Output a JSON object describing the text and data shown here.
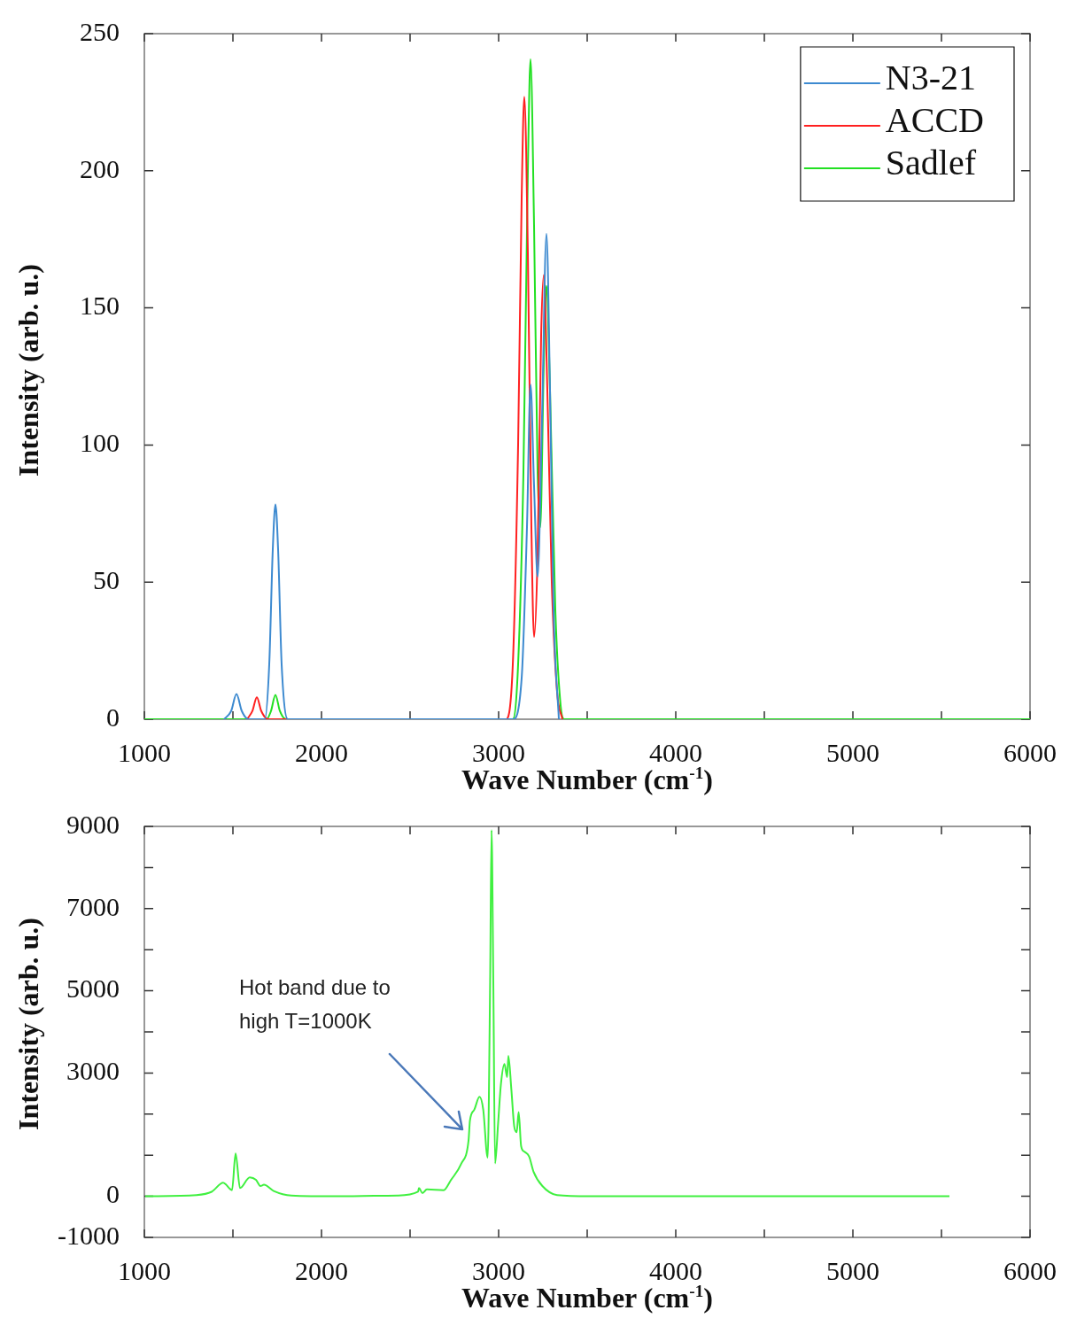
{
  "chart_data": [
    {
      "type": "line",
      "xlabel": "Wave Number (cm$^{-1}$)",
      "ylabel": "Intensity (arb. u.)",
      "xlim": [
        1000,
        6000
      ],
      "ylim": [
        0,
        250
      ],
      "xticks": [
        1000,
        {
          "value": 1500,
          "label": null
        },
        2000,
        {
          "value": 2500,
          "label": null
        },
        3000,
        {
          "value": 3500,
          "label": null
        },
        4000,
        {
          "value": 4500,
          "label": null
        },
        5000,
        {
          "value": 5500,
          "label": null
        },
        6000
      ],
      "yticks": [
        0,
        50,
        100,
        150,
        200,
        250
      ],
      "legend": "top right",
      "marker": "none",
      "series": [
        {
          "name": "N3-21",
          "color": "#3d8ad0",
          "x": [
            1450,
            1490,
            1520,
            1550,
            1590,
            1680,
            1705,
            1725,
            1740,
            1755,
            1775,
            1810,
            3080,
            3130,
            3160,
            3180,
            3200,
            3220,
            3245,
            3270,
            3290,
            3310,
            3340
          ],
          "values": [
            0,
            3,
            9.2,
            3,
            0,
            0,
            20,
            62,
            78.3,
            62,
            20,
            0,
            0,
            15,
            70,
            122,
            85,
            52,
            110,
            177,
            120,
            40,
            0
          ]
        },
        {
          "name": "ACCD",
          "color": "#ff2020",
          "x": [
            1580,
            1610,
            1635,
            1660,
            1700,
            3040,
            3080,
            3110,
            3130,
            3145,
            3165,
            3185,
            3200,
            3220,
            3240,
            3255,
            3275,
            3300,
            3330,
            3360
          ],
          "values": [
            0,
            3,
            8,
            3,
            0,
            0,
            20,
            100,
            190,
            227,
            170,
            70,
            30,
            60,
            140,
            162,
            120,
            50,
            10,
            0
          ]
        },
        {
          "name": "Sadlef",
          "color": "#22e022",
          "x": [
            1000,
            1690,
            1715,
            1740,
            1765,
            1800,
            3080,
            3110,
            3140,
            3165,
            3180,
            3200,
            3220,
            3235,
            3255,
            3270,
            3290,
            3320,
            3350,
            3370,
            6000
          ],
          "values": [
            0,
            0,
            3,
            8.9,
            3,
            0,
            0,
            20,
            90,
            200,
            240.7,
            180,
            90,
            70,
            130,
            158,
            120,
            40,
            5,
            0,
            0
          ]
        }
      ]
    },
    {
      "type": "line",
      "xlabel": "Wave Number (cm$^{-1}$)",
      "ylabel": "Intensity (arb. u.)",
      "xlim": [
        1000,
        6000
      ],
      "ylim": [
        -1000,
        9000
      ],
      "xticks": [
        1000,
        {
          "value": 1500,
          "label": null
        },
        2000,
        {
          "value": 2500,
          "label": null
        },
        3000,
        {
          "value": 3500,
          "label": null
        },
        4000,
        {
          "value": 4500,
          "label": null
        },
        5000,
        {
          "value": 5500,
          "label": null
        },
        6000
      ],
      "yticks": [
        -1000,
        0,
        {
          "value": 1000,
          "label": null
        },
        {
          "value": 2000,
          "label": null
        },
        3000,
        {
          "value": 4000,
          "label": null
        },
        5000,
        {
          "value": 6000,
          "label": null
        },
        7000,
        {
          "value": 8000,
          "label": null
        },
        9000
      ],
      "marker": "none",
      "annotations": [
        "Hot band due to high T=1000K"
      ],
      "series": [
        {
          "color": "#40f040",
          "x": [
            1005,
            1295,
            1380,
            1445,
            1495,
            1515,
            1540,
            1595,
            1630,
            1655,
            1675,
            1730,
            1830,
            2095,
            2430,
            2545,
            2550,
            2570,
            2595,
            2690,
            2730,
            2790,
            2830,
            2838,
            2863,
            2892,
            2913,
            2938,
            2952,
            2960,
            2970,
            2980,
            2997,
            3013,
            3033,
            3048,
            3055,
            3072,
            3088,
            3102,
            3113,
            3127,
            3147,
            3172,
            3197,
            3247,
            3330,
            3513,
            5545
          ],
          "values": [
            0,
            30,
            110,
            330,
            150,
            1040,
            200,
            460,
            400,
            250,
            280,
            130,
            20,
            0,
            20,
            110,
            200,
            80,
            170,
            150,
            390,
            800,
            1350,
            1840,
            2110,
            2420,
            2110,
            940,
            5220,
            8910,
            5220,
            800,
            1770,
            2730,
            3220,
            2900,
            3420,
            2590,
            1700,
            1560,
            2050,
            1220,
            1080,
            970,
            600,
            250,
            30,
            0,
            0
          ]
        }
      ]
    }
  ]
}
